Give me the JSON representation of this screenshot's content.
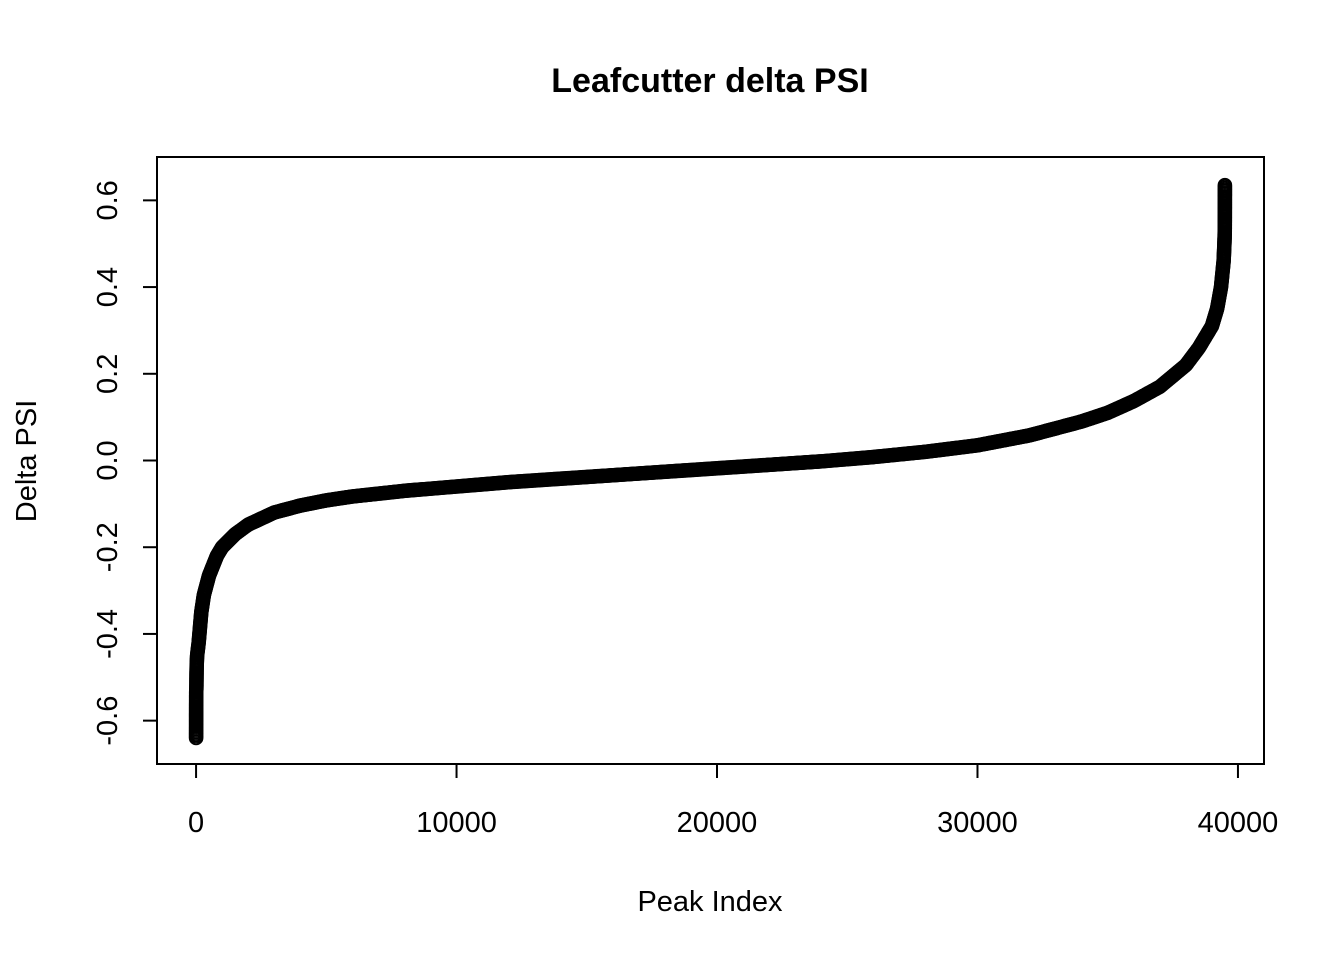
{
  "chart_data": {
    "type": "scatter",
    "title": "Leafcutter delta PSI",
    "xlabel": "Peak Index",
    "ylabel": "Delta PSI",
    "xlim": [
      -1500,
      41000
    ],
    "ylim": [
      -0.7,
      0.7
    ],
    "xticks": [
      0,
      10000,
      20000,
      30000,
      40000
    ],
    "xtick_labels": [
      "0",
      "10000",
      "20000",
      "30000",
      "40000"
    ],
    "yticks": [
      -0.6,
      -0.4,
      -0.2,
      0.0,
      0.2,
      0.4,
      0.6
    ],
    "ytick_labels": [
      "-0.6",
      "-0.4",
      "-0.2",
      "0.0",
      "0.2",
      "0.4",
      "0.6"
    ],
    "grid": false,
    "marker": "open-circle",
    "n_points": 39500,
    "series": [
      {
        "points": [
          {
            "x": 1,
            "y": -0.64
          },
          {
            "x": 3,
            "y": -0.565
          },
          {
            "x": 5,
            "y": -0.535
          },
          {
            "x": 8,
            "y": -0.53
          },
          {
            "x": 12,
            "y": -0.525
          },
          {
            "x": 18,
            "y": -0.49
          },
          {
            "x": 25,
            "y": -0.47
          },
          {
            "x": 40,
            "y": -0.45
          },
          {
            "x": 100,
            "y": -0.42
          },
          {
            "x": 200,
            "y": -0.35
          },
          {
            "x": 300,
            "y": -0.31
          },
          {
            "x": 500,
            "y": -0.265
          },
          {
            "x": 800,
            "y": -0.22
          },
          {
            "x": 1000,
            "y": -0.2
          },
          {
            "x": 1500,
            "y": -0.17
          },
          {
            "x": 2000,
            "y": -0.148
          },
          {
            "x": 3000,
            "y": -0.12
          },
          {
            "x": 4000,
            "y": -0.104
          },
          {
            "x": 5000,
            "y": -0.092
          },
          {
            "x": 6000,
            "y": -0.083
          },
          {
            "x": 8000,
            "y": -0.07
          },
          {
            "x": 10000,
            "y": -0.06
          },
          {
            "x": 12000,
            "y": -0.05
          },
          {
            "x": 14000,
            "y": -0.042
          },
          {
            "x": 16000,
            "y": -0.034
          },
          {
            "x": 18000,
            "y": -0.026
          },
          {
            "x": 20000,
            "y": -0.018
          },
          {
            "x": 22000,
            "y": -0.01
          },
          {
            "x": 24000,
            "y": -0.002
          },
          {
            "x": 26000,
            "y": 0.008
          },
          {
            "x": 28000,
            "y": 0.02
          },
          {
            "x": 30000,
            "y": 0.035
          },
          {
            "x": 32000,
            "y": 0.058
          },
          {
            "x": 34000,
            "y": 0.09
          },
          {
            "x": 35000,
            "y": 0.11
          },
          {
            "x": 36000,
            "y": 0.137
          },
          {
            "x": 37000,
            "y": 0.17
          },
          {
            "x": 38000,
            "y": 0.22
          },
          {
            "x": 38500,
            "y": 0.26
          },
          {
            "x": 39000,
            "y": 0.31
          },
          {
            "x": 39200,
            "y": 0.35
          },
          {
            "x": 39350,
            "y": 0.4
          },
          {
            "x": 39450,
            "y": 0.46
          },
          {
            "x": 39480,
            "y": 0.5
          },
          {
            "x": 39488,
            "y": 0.515
          },
          {
            "x": 39492,
            "y": 0.525
          },
          {
            "x": 39495,
            "y": 0.535
          },
          {
            "x": 39497,
            "y": 0.565
          },
          {
            "x": 39499,
            "y": 0.635
          }
        ]
      }
    ]
  }
}
